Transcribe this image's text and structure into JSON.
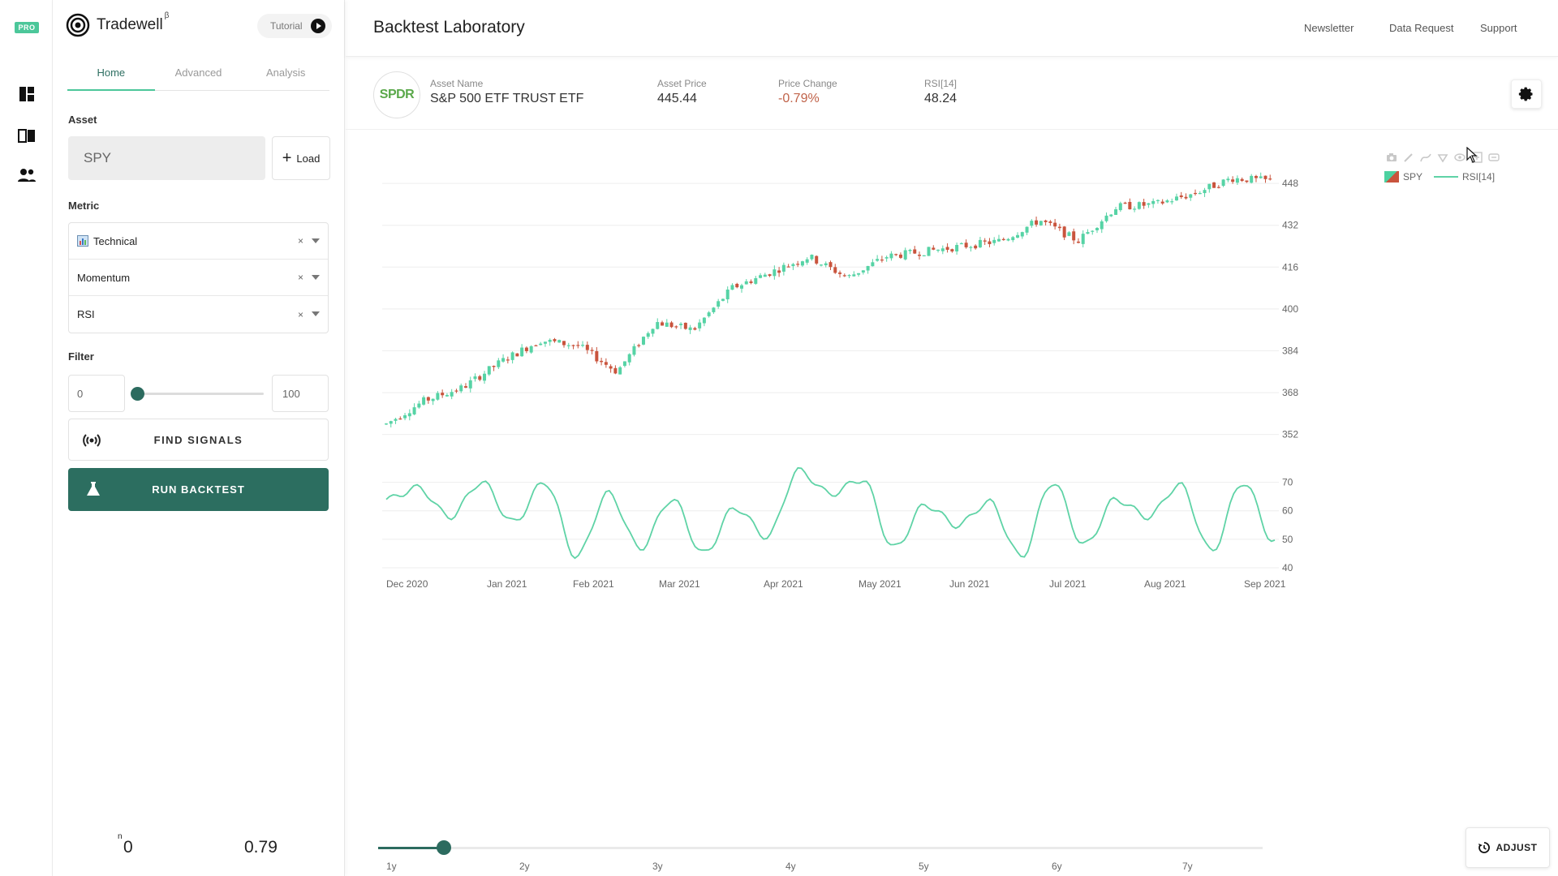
{
  "rail": {
    "badge": "PRO",
    "items": [
      {
        "name": "dashboard-icon"
      },
      {
        "name": "book-icon"
      },
      {
        "name": "people-icon"
      }
    ]
  },
  "sidebar": {
    "brand": {
      "name": "Tradewell",
      "superscript": "β"
    },
    "tutorial_label": "Tutorial",
    "tabs": [
      {
        "label": "Home",
        "active": true
      },
      {
        "label": "Advanced",
        "active": false
      },
      {
        "label": "Analysis",
        "active": false
      }
    ],
    "asset": {
      "label": "Asset",
      "value": "SPY",
      "load_label": "Load"
    },
    "metric": {
      "label": "Metric",
      "rows": [
        {
          "label": "Technical",
          "icon": "chart-emoji-icon"
        },
        {
          "label": "Momentum"
        },
        {
          "label": "RSI"
        }
      ],
      "clear_glyph": "×"
    },
    "filter": {
      "label": "Filter",
      "min": "0",
      "max": "100",
      "slider_value": 0
    },
    "find_signals_label": "FIND SIGNALS",
    "run_backtest_label": "RUN BACKTEST",
    "stats": {
      "n_sup": "n",
      "n_value": "0",
      "r_value": "0.79"
    }
  },
  "header": {
    "title": "Backtest Laboratory",
    "links": [
      "Newsletter",
      "Data Request",
      "Support"
    ]
  },
  "asset_info": {
    "logo_text": "SPDR",
    "columns": [
      {
        "label": "Asset Name",
        "value": "S&P 500 ETF TRUST ETF"
      },
      {
        "label": "Asset Price",
        "value": "445.44"
      },
      {
        "label": "Price Change",
        "value": "-0.79%",
        "negative": true
      },
      {
        "label": "RSI[14]",
        "value": "48.24"
      }
    ]
  },
  "colors": {
    "up": "#56d3a5",
    "down": "#c9543d",
    "rsi": "#5fd3a6",
    "accent": "#2c6e60",
    "grid": "#eeeeee",
    "axis_text": "#666666"
  },
  "chart_data": {
    "type": "candlestick",
    "legend": [
      {
        "name": "SPY"
      },
      {
        "name": "RSI[14]"
      }
    ],
    "price_axis": {
      "ticks": [
        352,
        368,
        384,
        400,
        416,
        432,
        448
      ],
      "range": [
        346,
        453
      ]
    },
    "rsi_axis": {
      "ticks": [
        40,
        50,
        60,
        70
      ],
      "range": [
        40,
        77
      ]
    },
    "x_labels": [
      "Dec 2020",
      "Jan 2021",
      "Feb 2021",
      "Mar 2021",
      "Apr 2021",
      "May 2021",
      "Jun 2021",
      "Jul 2021",
      "Aug 2021",
      "Sep 2021"
    ],
    "price_anchors": [
      356,
      365,
      370,
      380,
      388,
      386,
      376,
      395,
      392,
      408,
      414,
      420,
      412,
      420,
      422,
      424,
      426,
      434,
      426,
      439,
      440,
      444,
      450,
      449
    ],
    "rsi_anchors": [
      64,
      68,
      58,
      70,
      56,
      70,
      44,
      66,
      47,
      64,
      45,
      61,
      51,
      74,
      66,
      71,
      47,
      62,
      55,
      63,
      44,
      70,
      48,
      64,
      58,
      69,
      46,
      70,
      49
    ]
  },
  "range_slider": {
    "ticks": [
      "1y",
      "2y",
      "3y",
      "4y",
      "5y",
      "6y",
      "7y"
    ],
    "value_years": 0.4,
    "max_years": 7
  },
  "adjust_label": "ADJUST"
}
